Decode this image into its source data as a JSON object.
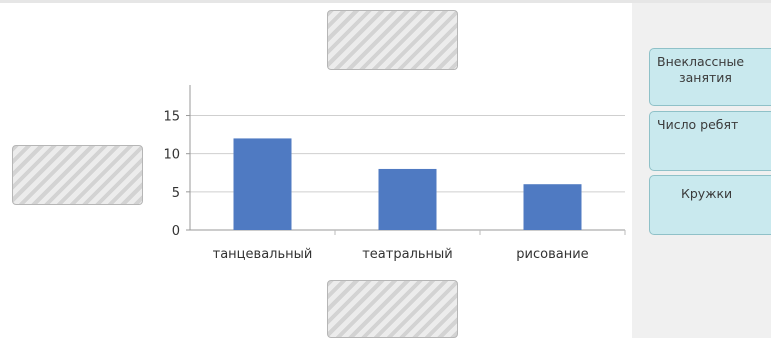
{
  "chart_data": {
    "type": "bar",
    "categories": [
      "танцевальный",
      "театральный",
      "рисование"
    ],
    "values": [
      12,
      8,
      6
    ],
    "yticks": [
      0,
      5,
      10,
      15
    ],
    "ylim": [
      0,
      19
    ],
    "grid": true,
    "bar_color": "#4f7ac2",
    "title": "",
    "xlabel": "",
    "ylabel": ""
  },
  "drop_zones": [
    "",
    "",
    ""
  ],
  "tiles": {
    "t1_line1": "Внеклассные",
    "t1_line2": "занятия",
    "t2": "Число ребят",
    "t3": "Кружки"
  },
  "colors": {
    "tile_bg": "#c9e9ee",
    "tile_border": "#8fc1c8",
    "panel_bg": "#f0f0f0"
  }
}
